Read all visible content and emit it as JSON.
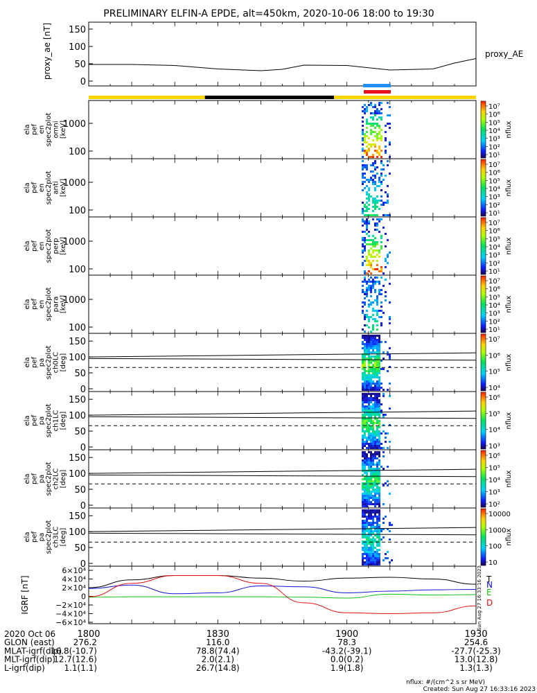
{
  "title": "PRELIMINARY ELFIN-A EPDE, alt=450km, 2020-10-06 18:00 to 19:30",
  "colors": {
    "sunlight": "#ffd400",
    "shadow": "#000000",
    "sci_blue": "#1f8fff",
    "sci_red": "#e8101a",
    "trace": "#000000",
    "n_comp": "#1010d0",
    "e_comp": "#10c010",
    "d_comp": "#e01010"
  },
  "chart_data": [
    {
      "id": "proxy_ae",
      "type": "line",
      "ylabel": "proxy_ae [nT]",
      "yticks": [
        "150",
        "100",
        "50",
        "0"
      ],
      "ylim": [
        0,
        160
      ],
      "legend": "proxy_AE",
      "series": [
        {
          "x": [
            0,
            10,
            20,
            30,
            40,
            45,
            50,
            60,
            70,
            80,
            85,
            90
          ],
          "y": [
            48,
            48,
            45,
            35,
            30,
            34,
            46,
            45,
            32,
            35,
            52,
            65
          ]
        }
      ]
    },
    {
      "id": "spec_omni",
      "type": "heatmap",
      "ylabel": [
        "ela",
        "pef",
        "en",
        "spec2plot",
        "omni",
        "[keV]"
      ],
      "yticks": [
        "1000",
        "100"
      ],
      "cbar_ticks": [
        "10⁷",
        "10⁶",
        "10⁵",
        "10⁴",
        "10³",
        "10²",
        "10¹"
      ],
      "cbar_label": "nflux"
    },
    {
      "id": "spec_anti",
      "type": "heatmap",
      "ylabel": [
        "ela",
        "pef",
        "en",
        "spec2plot",
        "anti",
        "[keV]"
      ],
      "yticks": [
        "1000",
        "100"
      ],
      "cbar_ticks": [
        "10⁷",
        "10⁶",
        "10⁵",
        "10⁴",
        "10³",
        "10²",
        "10¹"
      ],
      "cbar_label": "nflux"
    },
    {
      "id": "spec_perp",
      "type": "heatmap",
      "ylabel": [
        "ela",
        "pef",
        "en",
        "spec2plot",
        "perp",
        "[keV]"
      ],
      "yticks": [
        "1000",
        "100"
      ],
      "cbar_ticks": [
        "10⁷",
        "10⁶",
        "10⁵",
        "10⁴",
        "10³",
        "10²",
        "10¹"
      ],
      "cbar_label": "nflux"
    },
    {
      "id": "spec_para",
      "type": "heatmap",
      "ylabel": [
        "ela",
        "pef",
        "en",
        "spec2plot",
        "para",
        "[keV]"
      ],
      "yticks": [
        "1000",
        "100"
      ],
      "cbar_ticks": [
        "10⁷",
        "10⁶",
        "10⁵",
        "10⁴",
        "10³",
        "10²",
        "10¹"
      ],
      "cbar_label": "nflux"
    },
    {
      "id": "pa_ch0",
      "type": "heatmap",
      "ylabel": [
        "ela",
        "pef",
        "pa",
        "spec2plot",
        "ch0LC",
        "[deg]"
      ],
      "yticks": [
        "150",
        "100",
        "50",
        "0"
      ],
      "cbar_ticks": [
        "10⁷",
        "10⁶",
        "10⁵",
        "10⁴"
      ],
      "cbar_label": "nflux"
    },
    {
      "id": "pa_ch1",
      "type": "heatmap",
      "ylabel": [
        "ela",
        "pef",
        "pa",
        "spec2plot",
        "ch1LC",
        "[deg]"
      ],
      "yticks": [
        "150",
        "100",
        "50",
        "0"
      ],
      "cbar_ticks": [
        "10⁶",
        "10⁵",
        "10⁴",
        "10³"
      ],
      "cbar_label": "nflux"
    },
    {
      "id": "pa_ch2",
      "type": "heatmap",
      "ylabel": [
        "ela",
        "pef",
        "pa",
        "spec2plot",
        "ch2LC",
        "[deg]"
      ],
      "yticks": [
        "150",
        "100",
        "50",
        "0"
      ],
      "cbar_ticks": [
        "10⁶",
        "10⁵",
        "10⁴",
        "10³",
        "10²"
      ],
      "cbar_label": "nflux"
    },
    {
      "id": "pa_ch3",
      "type": "heatmap",
      "ylabel": [
        "ela",
        "pef",
        "pa",
        "spec2plot",
        "ch3LC",
        "[deg]"
      ],
      "yticks": [
        "150",
        "100",
        "50",
        "0"
      ],
      "cbar_ticks": [
        "10000",
        "1000",
        "100",
        "10"
      ],
      "cbar_label": "nflux"
    },
    {
      "id": "igrf",
      "type": "line",
      "ylabel": "IGRF [nT]",
      "yticks": [
        "6×10⁴",
        "4×10⁴",
        "2×10⁴",
        "0",
        "−2×10⁴",
        "−4×10⁴",
        "−6×10⁴"
      ],
      "ylim": [
        -60000,
        60000
      ],
      "legend": [
        "T",
        "N",
        "E",
        "D"
      ],
      "series": [
        {
          "name": "T",
          "x": [
            0,
            10,
            20,
            30,
            40,
            50,
            60,
            70,
            80,
            90
          ],
          "y": [
            20000,
            38000,
            48000,
            48000,
            42000,
            35000,
            42000,
            44000,
            40000,
            28000
          ]
        },
        {
          "name": "N",
          "x": [
            0,
            10,
            20,
            30,
            40,
            50,
            60,
            70,
            80,
            90
          ],
          "y": [
            18000,
            26000,
            6000,
            8000,
            24000,
            22000,
            8000,
            12000,
            15000,
            16000
          ]
        },
        {
          "name": "E",
          "x": [
            0,
            10,
            20,
            30,
            40,
            50,
            60,
            70,
            80,
            90
          ],
          "y": [
            -2000,
            -1000,
            -1000,
            -1000,
            -1000,
            -2000,
            -4000,
            5000,
            3000,
            4000
          ]
        },
        {
          "name": "D",
          "x": [
            0,
            10,
            20,
            30,
            40,
            50,
            60,
            70,
            80,
            90
          ],
          "y": [
            -1000,
            30000,
            48000,
            48000,
            30000,
            -15000,
            -38000,
            -40000,
            -38000,
            -22000
          ]
        }
      ]
    }
  ],
  "xaxis": {
    "tick_labels": [
      "1800",
      "1830",
      "1900",
      "1930"
    ],
    "minutes": [
      0,
      30,
      60,
      90
    ]
  },
  "footer": {
    "rows": [
      {
        "label": "2020 Oct 06",
        "values": [
          "",
          "",
          "",
          ""
        ]
      },
      {
        "label": "GLON (east)",
        "values": [
          "276.2",
          "116.0",
          "78.3",
          "254.6"
        ]
      },
      {
        "label": "MLAT-igrf(dip)",
        "values": [
          "16.8(-10.7)",
          "78.8(74.4)",
          "-43.2(-39.1)",
          "-27.7(-25.3)"
        ]
      },
      {
        "label": "MLT-igrf(dip)",
        "values": [
          "12.7(12.6)",
          "2.0(2.1)",
          "0.0(0.2)",
          "13.0(12.8)"
        ]
      },
      {
        "label": "L-igrf(dip)",
        "values": [
          "1.1(1.1)",
          "26.7(14.8)",
          "1.9(1.8)",
          "1.3(1.3)"
        ]
      }
    ],
    "units": "nflux: #/(cm^2 s sr MeV)",
    "created": "Created: Sun Aug 27 16:33:16 2023",
    "side_stamp": "Sun Aug 27 16:33:16 2023"
  }
}
